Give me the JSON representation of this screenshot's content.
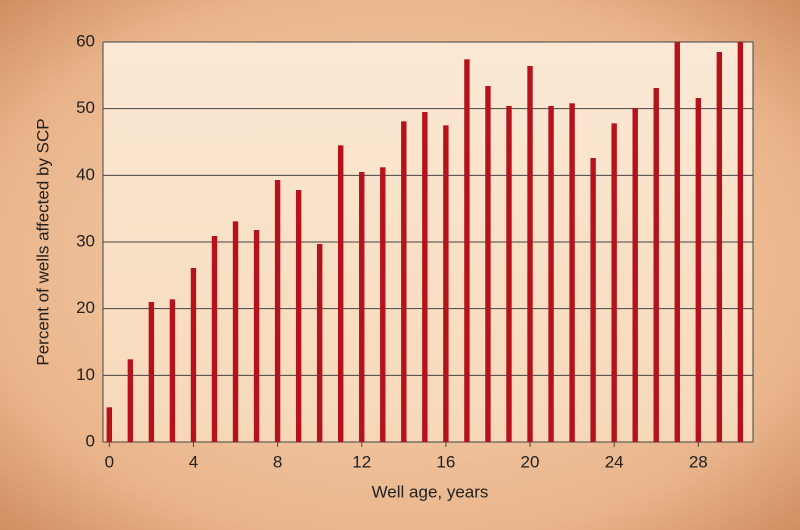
{
  "chart_data": {
    "type": "bar",
    "x": [
      0,
      1,
      2,
      3,
      4,
      5,
      6,
      7,
      8,
      9,
      10,
      11,
      12,
      13,
      14,
      15,
      16,
      17,
      18,
      19,
      20,
      21,
      22,
      23,
      24,
      25,
      26,
      27,
      28,
      29,
      30
    ],
    "values": [
      5.2,
      12.4,
      21,
      21.4,
      26.1,
      30.9,
      33.1,
      31.8,
      39.3,
      37.8,
      29.7,
      44.5,
      40.5,
      41.2,
      48.1,
      49.5,
      47.5,
      57.4,
      53.4,
      50.4,
      56.4,
      50.4,
      50.8,
      42.6,
      47.8,
      50.1,
      53.1,
      60,
      51.6,
      58.5,
      60
    ],
    "color": "#b5121b",
    "xlabel": "Well age, years",
    "ylabel": "Percent of wells affected by SCP",
    "xlim": [
      -0.3,
      30.6
    ],
    "xticks": [
      0,
      4,
      8,
      12,
      16,
      20,
      24,
      28
    ],
    "ylim": [
      0,
      60
    ],
    "yticks": [
      0,
      10,
      20,
      30,
      40,
      50,
      60
    ],
    "grid": true
  }
}
